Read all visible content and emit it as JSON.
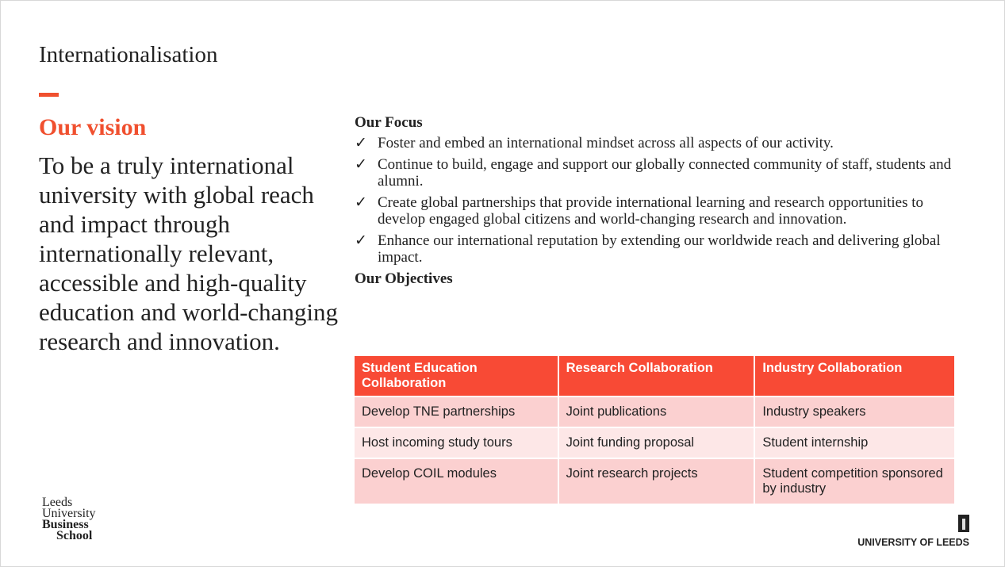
{
  "title": "Internationalisation",
  "vision": {
    "heading": "Our vision",
    "text": "To be a truly international university with global reach and impact through internationally relevant, accessible and high-quality education and world-changing research and innovation."
  },
  "focus": {
    "heading": "Our Focus",
    "items": [
      "Foster and embed an international mindset across all aspects of our activity.",
      "Continue to build, engage and support our globally connected community of staff, students and alumni.",
      "Create global partnerships that provide international learning and research opportunities to develop engaged global citizens and world-changing research and innovation.",
      "Enhance our international reputation by extending our worldwide reach and delivering global impact."
    ]
  },
  "objectives": {
    "heading": "Our Objectives",
    "columns": [
      "Student Education Collaboration",
      "Research Collaboration",
      "Industry Collaboration"
    ],
    "rows": [
      [
        "Develop TNE partnerships",
        "Joint publications",
        "Industry speakers"
      ],
      [
        "Host incoming study tours",
        "Joint funding proposal",
        "Student internship"
      ],
      [
        "Develop COIL modules",
        "Joint research projects",
        "Student competition sponsored by industry"
      ]
    ]
  },
  "logos": {
    "lubs": [
      "Leeds",
      "University",
      "Business",
      "School"
    ],
    "uol": "UNIVERSITY OF LEEDS"
  },
  "colors": {
    "accent": "#f0502f",
    "header": "#f84a35",
    "row": "#fbd0d0",
    "row_alt": "#fde7e7"
  },
  "check_icon": "✓"
}
